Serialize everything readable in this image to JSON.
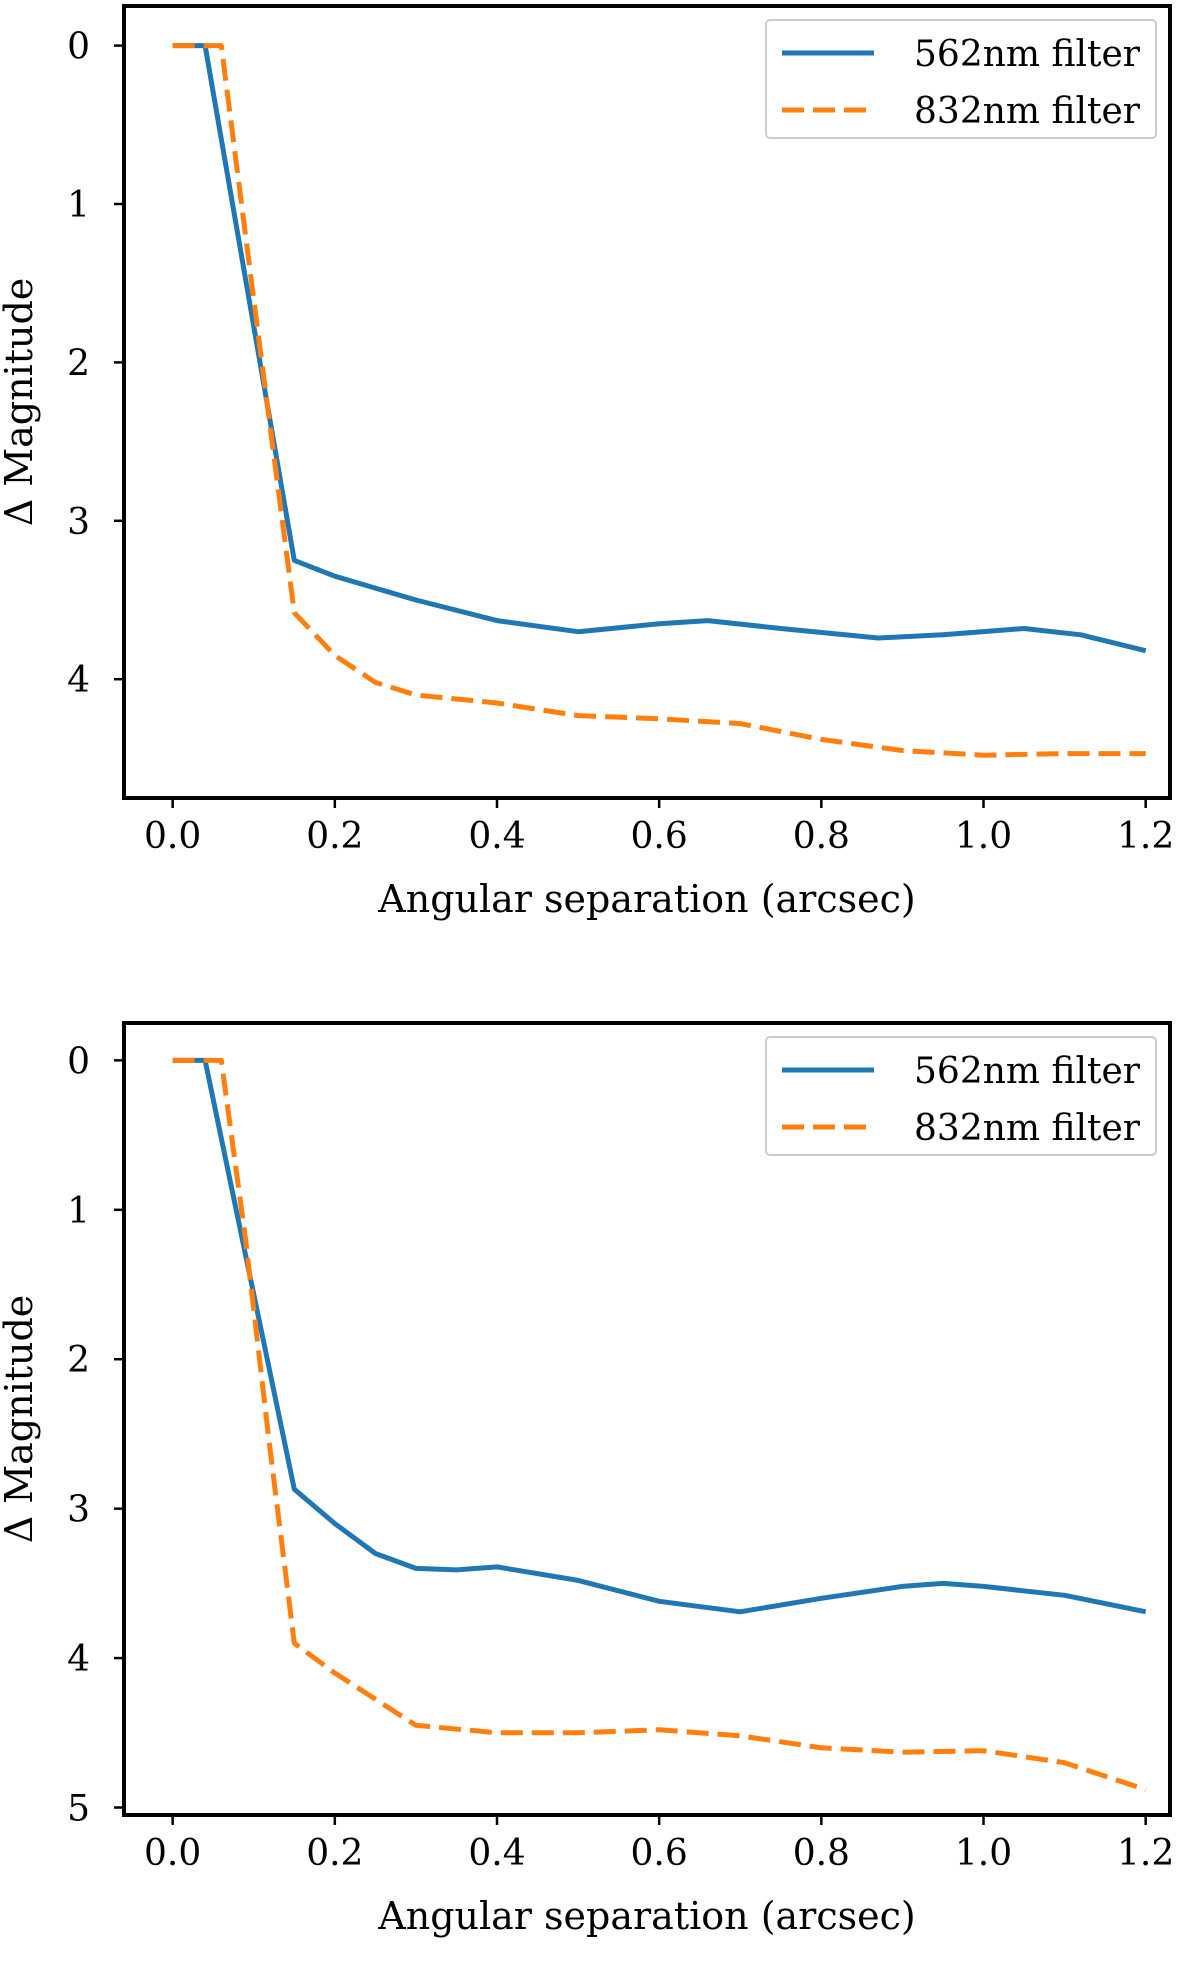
{
  "chart_data": [
    {
      "type": "line",
      "title": "",
      "xlabel": "Angular separation (arcsec)",
      "ylabel": "Δ Magnitude",
      "xlim": [
        -0.06,
        1.23
      ],
      "ylim": [
        4.75,
        -0.25
      ],
      "y_inverted": true,
      "x_ticks": [
        0.0,
        0.2,
        0.4,
        0.6,
        0.8,
        1.0,
        1.2
      ],
      "x_tick_labels": [
        "0.0",
        "0.2",
        "0.4",
        "0.6",
        "0.8",
        "1.0",
        "1.2"
      ],
      "y_ticks": [
        0,
        1,
        2,
        3,
        4
      ],
      "y_tick_labels": [
        "0",
        "1",
        "2",
        "3",
        "4"
      ],
      "grid": false,
      "legend_position": "top-right",
      "series": [
        {
          "name": "562nm filter",
          "color": "#1f77b4",
          "style": "solid",
          "x": [
            0.0,
            0.04,
            0.15,
            0.2,
            0.3,
            0.4,
            0.5,
            0.6,
            0.66,
            0.75,
            0.87,
            0.95,
            1.05,
            1.12,
            1.2
          ],
          "y": [
            0.0,
            0.0,
            3.25,
            3.35,
            3.5,
            3.63,
            3.7,
            3.65,
            3.63,
            3.68,
            3.74,
            3.72,
            3.68,
            3.72,
            3.82
          ]
        },
        {
          "name": "832nm filter",
          "color": "#ff7f0e",
          "style": "dashed",
          "x": [
            0.0,
            0.06,
            0.09,
            0.12,
            0.15,
            0.2,
            0.25,
            0.3,
            0.4,
            0.5,
            0.6,
            0.7,
            0.8,
            0.9,
            1.0,
            1.1,
            1.2
          ],
          "y": [
            0.0,
            0.0,
            1.2,
            2.4,
            3.58,
            3.85,
            4.02,
            4.1,
            4.15,
            4.23,
            4.25,
            4.28,
            4.38,
            4.45,
            4.48,
            4.47,
            4.47
          ]
        }
      ]
    },
    {
      "type": "line",
      "title": "",
      "xlabel": "Angular separation (arcsec)",
      "ylabel": "Δ Magnitude",
      "xlim": [
        -0.06,
        1.23
      ],
      "ylim": [
        5.05,
        -0.25
      ],
      "y_inverted": true,
      "x_ticks": [
        0.0,
        0.2,
        0.4,
        0.6,
        0.8,
        1.0,
        1.2
      ],
      "x_tick_labels": [
        "0.0",
        "0.2",
        "0.4",
        "0.6",
        "0.8",
        "1.0",
        "1.2"
      ],
      "y_ticks": [
        0,
        1,
        2,
        3,
        4,
        5
      ],
      "y_tick_labels": [
        "0",
        "1",
        "2",
        "3",
        "4",
        "5"
      ],
      "grid": false,
      "legend_position": "top-right",
      "series": [
        {
          "name": "562nm filter",
          "color": "#1f77b4",
          "style": "solid",
          "x": [
            0.0,
            0.04,
            0.15,
            0.2,
            0.25,
            0.3,
            0.35,
            0.4,
            0.5,
            0.6,
            0.7,
            0.8,
            0.9,
            0.95,
            1.0,
            1.1,
            1.2
          ],
          "y": [
            0.0,
            0.0,
            2.87,
            3.1,
            3.3,
            3.4,
            3.41,
            3.39,
            3.48,
            3.62,
            3.69,
            3.6,
            3.52,
            3.5,
            3.52,
            3.58,
            3.69
          ]
        },
        {
          "name": "832nm filter",
          "color": "#ff7f0e",
          "style": "dashed",
          "x": [
            0.0,
            0.06,
            0.09,
            0.12,
            0.15,
            0.2,
            0.3,
            0.4,
            0.5,
            0.6,
            0.7,
            0.8,
            0.9,
            1.0,
            1.1,
            1.2
          ],
          "y": [
            0.0,
            0.0,
            1.2,
            2.6,
            3.9,
            4.1,
            4.45,
            4.5,
            4.5,
            4.48,
            4.52,
            4.6,
            4.63,
            4.62,
            4.7,
            4.88
          ]
        }
      ]
    }
  ]
}
